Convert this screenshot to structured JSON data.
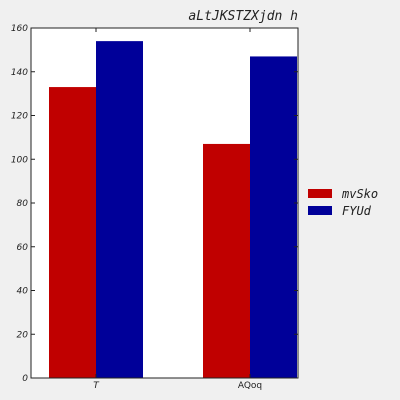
{
  "chart_data": {
    "type": "bar",
    "title": "aLtJKSTZXjdn h",
    "xlabel": "",
    "ylabel": "",
    "categories": [
      "T",
      "AQoq"
    ],
    "series": [
      {
        "name": "mvSko",
        "color": "#c00000",
        "values": [
          133,
          107
        ]
      },
      {
        "name": "FYUd",
        "color": "#000099",
        "values": [
          154,
          147
        ]
      }
    ],
    "ylim": [
      0,
      160
    ],
    "yticks": [
      0,
      20,
      40,
      60,
      80,
      100,
      120,
      140,
      160
    ],
    "grid": false,
    "legend_position": "right"
  }
}
